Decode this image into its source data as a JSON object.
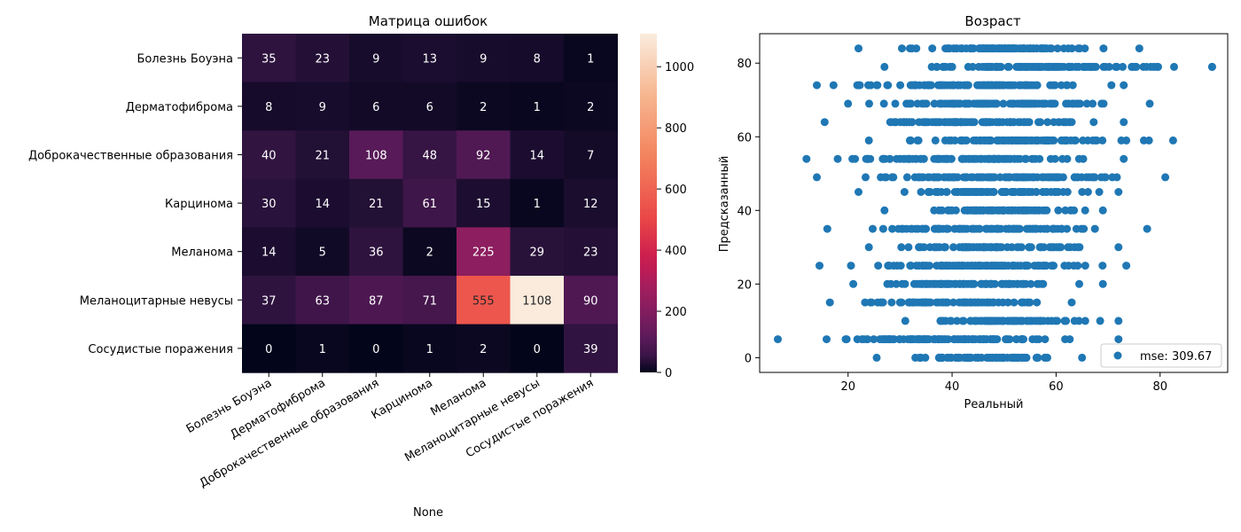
{
  "chart_data": [
    {
      "type": "heatmap",
      "title": "Матрица ошибок",
      "xlabel": "None",
      "ylabel": "",
      "row_labels": [
        "Болезнь Боуэна",
        "Дерматофиброма",
        "Доброкачественные образования",
        "Карцинома",
        "Меланома",
        "Меланоцитарные невусы",
        "Сосудистые поражения"
      ],
      "col_labels": [
        "Болезнь Боуэна",
        "Дерматофиброма",
        "Доброкачественные образования",
        "Карцинома",
        "Меланома",
        "Меланоцитарные невусы",
        "Сосудистые поражения"
      ],
      "values": [
        [
          35,
          23,
          9,
          13,
          9,
          8,
          1
        ],
        [
          8,
          9,
          6,
          6,
          2,
          1,
          2
        ],
        [
          40,
          21,
          108,
          48,
          92,
          14,
          7
        ],
        [
          30,
          14,
          21,
          61,
          15,
          1,
          12
        ],
        [
          14,
          5,
          36,
          2,
          225,
          29,
          23
        ],
        [
          37,
          63,
          87,
          71,
          555,
          1108,
          90
        ],
        [
          0,
          1,
          0,
          1,
          2,
          0,
          39
        ]
      ],
      "colorbar": {
        "min": 0,
        "max": 1108,
        "ticks": [
          0,
          200,
          400,
          600,
          800,
          1000
        ],
        "colormap": "rocket"
      }
    },
    {
      "type": "scatter",
      "title": "Возраст",
      "xlabel": "Реальный",
      "ylabel": "Предсказанный",
      "xlim": [
        3,
        93
      ],
      "ylim": [
        -4,
        88
      ],
      "xticks": [
        20,
        40,
        60,
        80
      ],
      "yticks": [
        0,
        20,
        40,
        60,
        80
      ],
      "legend": {
        "label": "mse: 309.67",
        "placement": "lower-right"
      },
      "color": "#1f77b4",
      "series": [
        {
          "x_range_by_predicted": [
            {
              "y": 84,
              "x_min": 22,
              "x_max": 76
            },
            {
              "y": 79,
              "x_min": 27,
              "x_max": 90,
              "x_extra": [
                90
              ]
            },
            {
              "y": 74,
              "x_min": 14,
              "x_max": 73
            },
            {
              "y": 69,
              "x_min": 20,
              "x_max": 78
            },
            {
              "y": 64,
              "x_min": 15.5,
              "x_max": 73
            },
            {
              "y": 59,
              "x_min": 24,
              "x_max": 82.5
            },
            {
              "y": 54,
              "x_min": 12,
              "x_max": 73
            },
            {
              "y": 49,
              "x_min": 14,
              "x_max": 81
            },
            {
              "y": 45,
              "x_min": 22,
              "x_max": 72
            },
            {
              "y": 40,
              "x_min": 27,
              "x_max": 69
            },
            {
              "y": 35,
              "x_min": 16,
              "x_max": 77.5
            },
            {
              "y": 30,
              "x_min": 24,
              "x_max": 72
            },
            {
              "y": 25,
              "x_min": 14.5,
              "x_max": 73.5
            },
            {
              "y": 20,
              "x_min": 21,
              "x_max": 69
            },
            {
              "y": 15,
              "x_min": 16.5,
              "x_max": 63
            },
            {
              "y": 10,
              "x_min": 31,
              "x_max": 72
            },
            {
              "y": 5,
              "x_min": 6.5,
              "x_max": 72
            },
            {
              "y": 0,
              "x_min": 25.5,
              "x_max": 65
            }
          ]
        }
      ]
    }
  ]
}
